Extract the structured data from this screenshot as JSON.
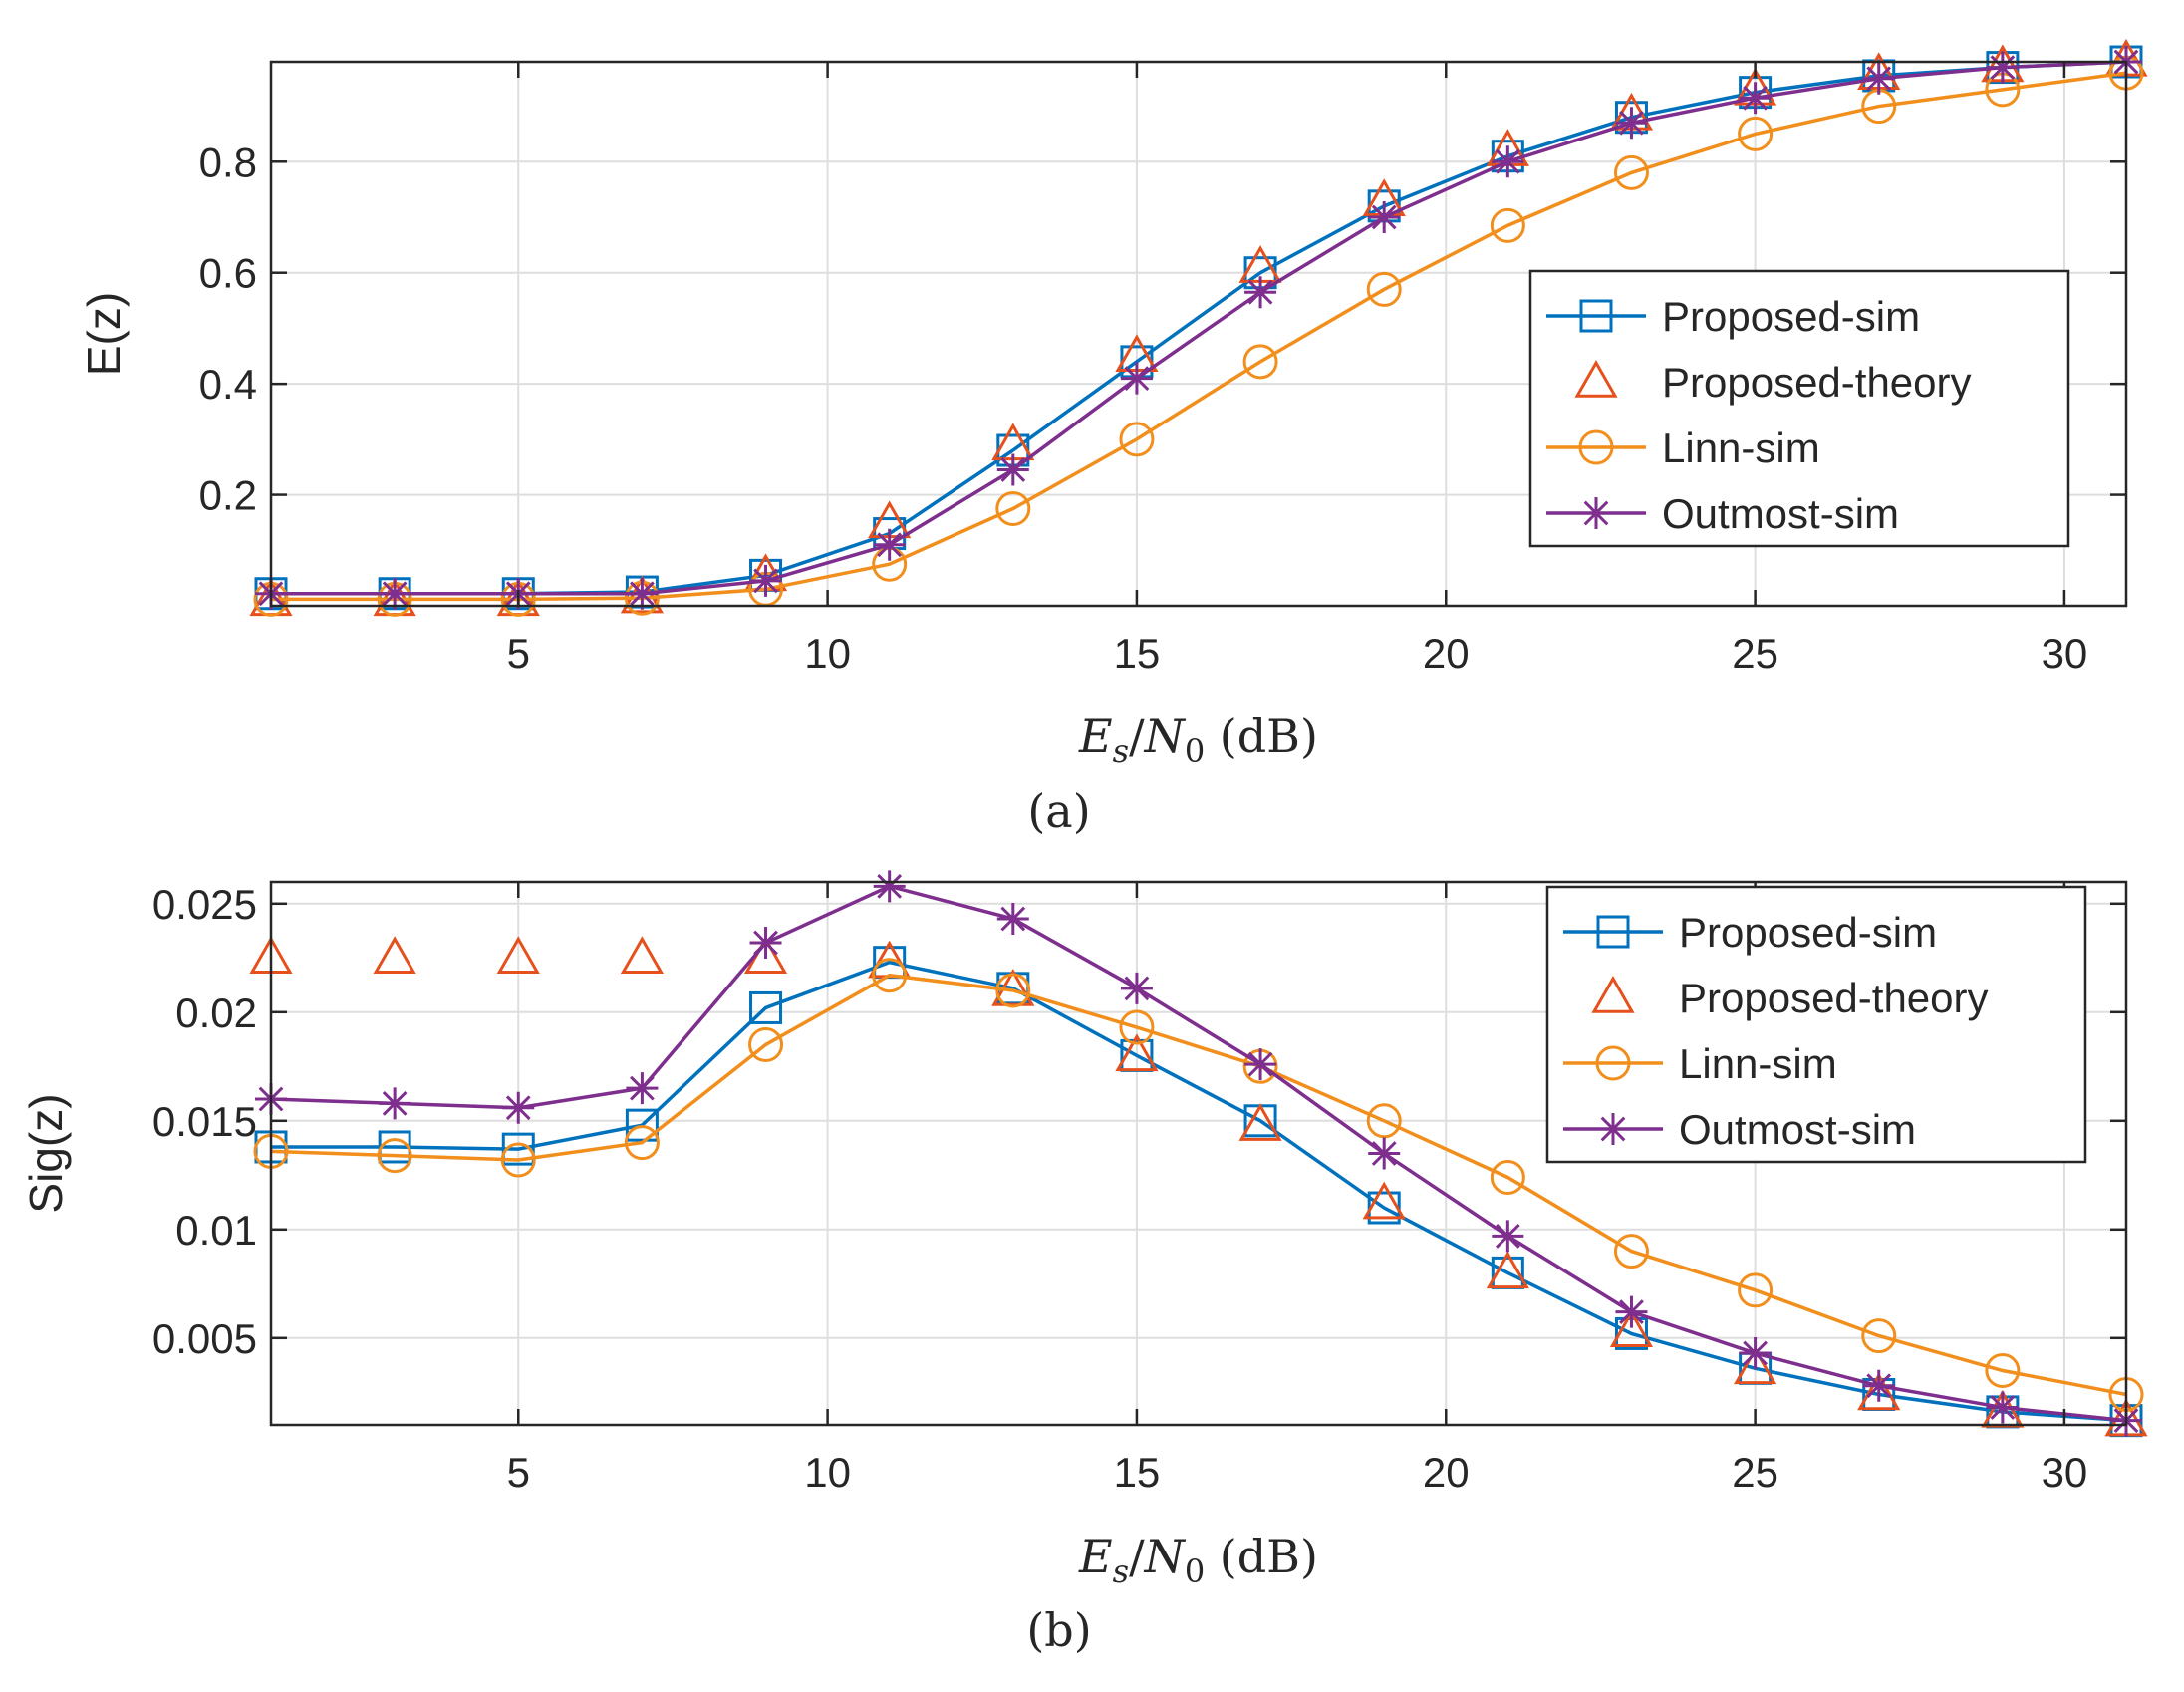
{
  "colors": {
    "proposed_sim": "#0072BD",
    "proposed_theory": "#E5501C",
    "linn_sim": "#F28E1C",
    "outmost_sim": "#7E2F8E"
  },
  "chart_data": [
    {
      "type": "line",
      "panel_caption": "(a)",
      "ylabel": "E(z)",
      "xlabel_main": "E",
      "xlabel_sub": "s",
      "xlabel_div": "/",
      "xlabel_main2": "N",
      "xlabel_sub2": "0",
      "xlabel_unit": " (dB)",
      "xlim": [
        1,
        31
      ],
      "ylim": [
        0,
        0.98
      ],
      "xticks": [
        5,
        10,
        15,
        20,
        25,
        30
      ],
      "xtick_labels": [
        "5",
        "10",
        "15",
        "20",
        "25",
        "30"
      ],
      "yticks": [
        0.2,
        0.4,
        0.6,
        0.8
      ],
      "ytick_labels": [
        "0.2",
        "0.4",
        "0.6",
        "0.8"
      ],
      "grid": true,
      "legend_position": "center-right",
      "x": [
        1,
        3,
        5,
        7,
        9,
        11,
        13,
        15,
        17,
        19,
        21,
        23,
        25,
        27,
        29,
        31
      ],
      "series": [
        {
          "name": "Proposed-sim",
          "style": "proposed_sim",
          "line": true,
          "marker": "square",
          "values": [
            0.022,
            0.022,
            0.022,
            0.025,
            0.055,
            0.13,
            0.28,
            0.44,
            0.6,
            0.72,
            0.81,
            0.88,
            0.925,
            0.955,
            0.97,
            0.98
          ]
        },
        {
          "name": "Proposed-theory",
          "style": "proposed_theory",
          "line": false,
          "marker": "triangle",
          "values": [
            0.01,
            0.01,
            0.01,
            0.015,
            0.055,
            0.15,
            0.29,
            0.45,
            0.61,
            0.73,
            0.82,
            0.885,
            0.93,
            0.958,
            0.972,
            0.982
          ]
        },
        {
          "name": "Linn-sim",
          "style": "linn_sim",
          "line": true,
          "marker": "circle",
          "values": [
            0.012,
            0.012,
            0.012,
            0.014,
            0.03,
            0.075,
            0.175,
            0.3,
            0.44,
            0.57,
            0.685,
            0.78,
            0.85,
            0.9,
            0.93,
            0.96
          ]
        },
        {
          "name": "Outmost-sim",
          "style": "outmost_sim",
          "line": true,
          "marker": "asterisk",
          "values": [
            0.022,
            0.022,
            0.022,
            0.022,
            0.045,
            0.11,
            0.245,
            0.41,
            0.565,
            0.7,
            0.8,
            0.87,
            0.915,
            0.95,
            0.97,
            0.98
          ]
        }
      ]
    },
    {
      "type": "line",
      "panel_caption": "(b)",
      "ylabel": "Sig(z)",
      "xlabel_main": "E",
      "xlabel_sub": "s",
      "xlabel_div": "/",
      "xlabel_main2": "N",
      "xlabel_sub2": "0",
      "xlabel_unit": " (dB)",
      "xlim": [
        1,
        31
      ],
      "ylim": [
        0.001,
        0.026
      ],
      "xticks": [
        5,
        10,
        15,
        20,
        25,
        30
      ],
      "xtick_labels": [
        "5",
        "10",
        "15",
        "20",
        "25",
        "30"
      ],
      "yticks": [
        0.005,
        0.01,
        0.015,
        0.02,
        0.025
      ],
      "ytick_labels": [
        "0.005",
        "0.01",
        "0.015",
        "0.02",
        "0.025"
      ],
      "grid": true,
      "legend_position": "top-right",
      "x": [
        1,
        3,
        5,
        7,
        9,
        11,
        13,
        15,
        17,
        19,
        21,
        23,
        25,
        27,
        29,
        31
      ],
      "series": [
        {
          "name": "Proposed-sim",
          "style": "proposed_sim",
          "line": true,
          "marker": "square",
          "values": [
            0.0138,
            0.0138,
            0.0137,
            0.0148,
            0.0202,
            0.0223,
            0.0211,
            0.018,
            0.015,
            0.011,
            0.008,
            0.0052,
            0.0036,
            0.0024,
            0.0016,
            0.0012
          ]
        },
        {
          "name": "Proposed-theory",
          "style": "proposed_theory",
          "line": false,
          "marker": "triangle",
          "values": [
            0.0225,
            0.0225,
            0.0225,
            0.0225,
            0.0225,
            0.0223,
            0.021,
            0.018,
            0.0148,
            0.0112,
            0.008,
            0.0053,
            0.0036,
            0.0024,
            0.0016,
            0.0012
          ]
        },
        {
          "name": "Linn-sim",
          "style": "linn_sim",
          "line": true,
          "marker": "circle",
          "values": [
            0.0136,
            0.0134,
            0.0132,
            0.014,
            0.0185,
            0.0217,
            0.021,
            0.0193,
            0.0175,
            0.015,
            0.0124,
            0.009,
            0.0072,
            0.0051,
            0.0035,
            0.0024
          ]
        },
        {
          "name": "Outmost-sim",
          "style": "outmost_sim",
          "line": true,
          "marker": "asterisk",
          "values": [
            0.016,
            0.0158,
            0.0156,
            0.0165,
            0.0232,
            0.0258,
            0.0243,
            0.0211,
            0.0176,
            0.0135,
            0.0097,
            0.0062,
            0.0043,
            0.0028,
            0.0018,
            0.0012
          ]
        }
      ]
    }
  ]
}
